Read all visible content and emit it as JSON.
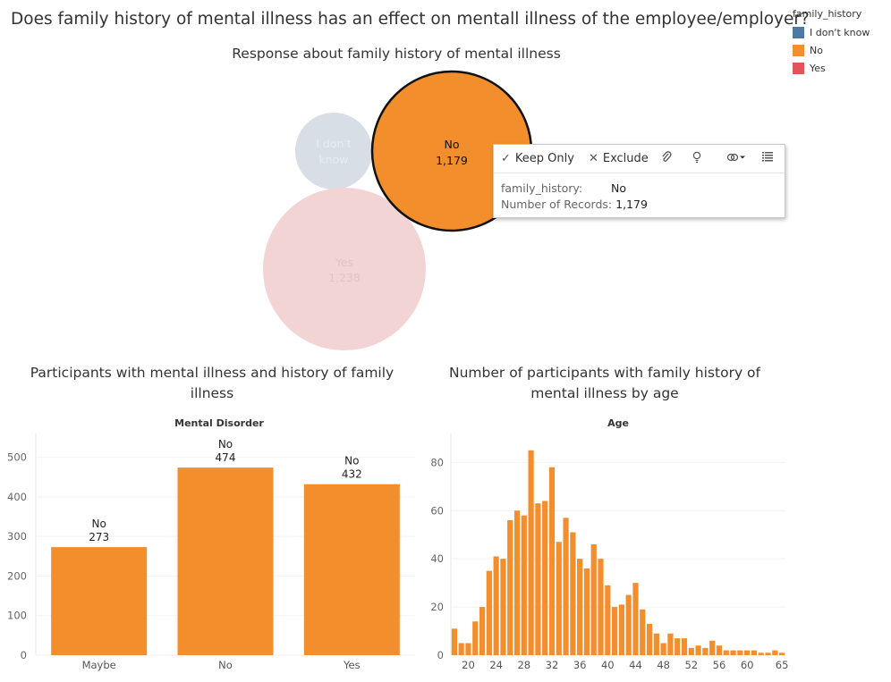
{
  "dashboard": {
    "title": "Does family history of mental illness has an effect on mentall illness of the employee/employer?"
  },
  "legend": {
    "title": "family_history",
    "items": [
      {
        "label": "I don't know",
        "color": "#4e79a7"
      },
      {
        "label": "No",
        "color": "#f28e2b"
      },
      {
        "label": "Yes",
        "color": "#e15759"
      }
    ]
  },
  "bubble": {
    "title": "Response about family history of mental illness"
  },
  "tooltip": {
    "keep_only": "Keep Only",
    "exclude": "Exclude",
    "key1": "family_history:",
    "val1": "No",
    "key2": "Number of Records:",
    "val2": "1,179",
    "icons": [
      "paperclip-icon",
      "lightbulb-icon",
      "link-icon",
      "view-data-icon"
    ]
  },
  "bar": {
    "title_line1": "Participants with mental illness and history of family",
    "title_line2": "illness"
  },
  "hist": {
    "title_line1": "Number of participants with family history of",
    "title_line2": "mental illness by age"
  },
  "chart_data": [
    {
      "type": "bubble",
      "title": "Response about family history of mental illness",
      "categories": [
        "I don't know",
        "No",
        "Yes"
      ],
      "display_labels": [
        [
          "I don't",
          "know"
        ],
        [
          "No",
          "1,179"
        ],
        [
          "Yes",
          "1,238"
        ]
      ],
      "values": [
        null,
        1179,
        1238
      ],
      "colors": [
        "#d7dee6",
        "#f28e2b",
        "#f3d4d5"
      ],
      "selected": "No"
    },
    {
      "type": "bar",
      "title": "Participants with mental illness and history of family illness",
      "header": "Mental Disorder",
      "categories": [
        "Maybe",
        "No",
        "Yes"
      ],
      "series": [
        {
          "name": "No",
          "values": [
            273,
            474,
            432
          ]
        }
      ],
      "ylim": [
        0,
        560
      ],
      "yticks": [
        0,
        100,
        200,
        300,
        400,
        500
      ],
      "color": "#f28e2b"
    },
    {
      "type": "bar",
      "title": "Number of participants with family history of mental illness by age",
      "header": "Age",
      "x": [
        18,
        19,
        20,
        21,
        22,
        23,
        24,
        25,
        26,
        27,
        28,
        29,
        30,
        31,
        32,
        33,
        34,
        35,
        36,
        37,
        38,
        39,
        40,
        41,
        42,
        43,
        44,
        45,
        46,
        47,
        48,
        49,
        50,
        51,
        52,
        53,
        54,
        55,
        56,
        57,
        58,
        59,
        60,
        61,
        62,
        63,
        64,
        65
      ],
      "values": [
        11,
        5,
        5,
        14,
        20,
        35,
        41,
        40,
        56,
        60,
        58,
        85,
        63,
        64,
        78,
        47,
        57,
        51,
        40,
        36,
        46,
        40,
        29,
        20,
        21,
        25,
        30,
        19,
        13,
        9,
        5,
        9,
        7,
        7,
        3,
        4,
        3,
        6,
        4,
        2,
        2,
        2,
        2,
        2,
        1,
        1,
        2,
        1
      ],
      "xticks": [
        20,
        24,
        28,
        32,
        36,
        40,
        44,
        48,
        52,
        56,
        60,
        65
      ],
      "ylim": [
        0,
        92
      ],
      "yticks": [
        0,
        20,
        40,
        60,
        80
      ],
      "color": "#f28e2b"
    }
  ]
}
